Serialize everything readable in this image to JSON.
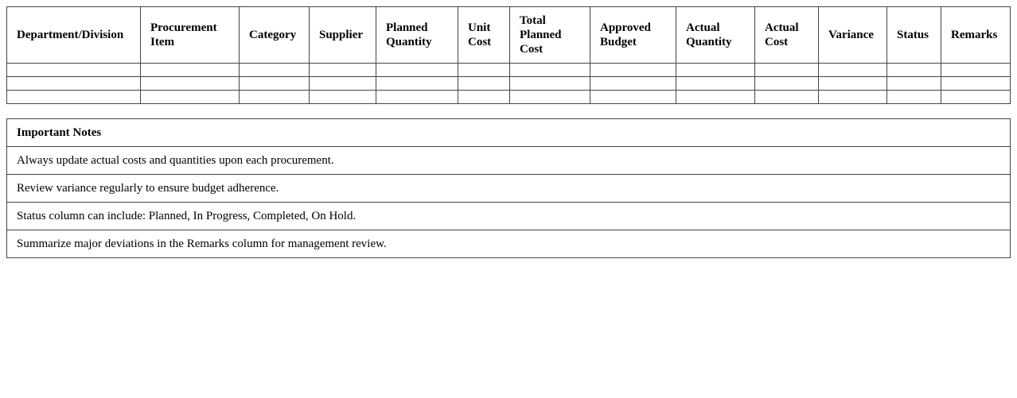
{
  "table": {
    "headers": [
      "Department/Division",
      "Procurement Item",
      "Category",
      "Supplier",
      "Planned Quantity",
      "Unit Cost",
      "Total Planned Cost",
      "Approved Budget",
      "Actual Quantity",
      "Actual Cost",
      "Variance",
      "Status",
      "Remarks"
    ],
    "row_count": 3
  },
  "notes": {
    "title": "Important Notes",
    "items": [
      "Always update actual costs and quantities upon each procurement.",
      "Review variance regularly to ensure budget adherence.",
      "Status column can include: Planned, In Progress, Completed, On Hold.",
      "Summarize major deviations in the Remarks column for management review."
    ]
  }
}
